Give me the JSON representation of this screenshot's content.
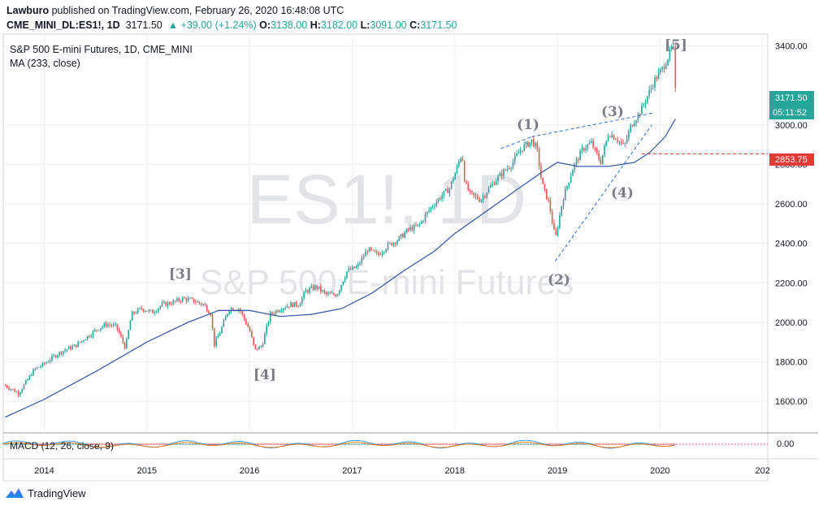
{
  "header": {
    "author": "Lawburo",
    "published": "published on TradingView.com, February 26, 2020 16:48:08 UTC",
    "symbol": "CME_MINI_DL:ES1!, 1D",
    "last": "3171.50",
    "change": "▲ +39.00 (+1.24%)",
    "o_label": "O:",
    "o": "3138.00",
    "h_label": "H:",
    "h": "3182.00",
    "l_label": "L:",
    "l": "3091.00",
    "c_label": "C:",
    "c": "3171.50"
  },
  "legend": {
    "title": "S&P 500 E-mini Futures, 1D, CME_MINI",
    "ma": "MA (233, close)"
  },
  "watermark": {
    "ticker": "ES1!, 1D",
    "name": "S&P 500 E-mini Futures"
  },
  "macd_label": "MACD (12, 26, close, 9)",
  "macd_value": "0.00",
  "price_tag": {
    "price": "3171.50",
    "countdown": "05:11:52"
  },
  "red_tag": "2853.75",
  "wave_labels": [
    "[3]",
    "[4]",
    "(1)",
    "(2)",
    "(3)",
    "(4)",
    "[5]"
  ],
  "footer": {
    "brand": "TradingView"
  },
  "colors": {
    "candle_up": "#26a69a",
    "candle_down": "#ef5350",
    "ma_line": "#3c5ea8",
    "wave_line": "#2a6fd6",
    "red_level": "#e53935",
    "price_tag": "#26a69a",
    "red_tag_bg": "#e53935"
  },
  "chart_data": {
    "type": "line",
    "title": "S&P 500 E-mini Futures, 1D, CME_MINI",
    "x_ticks": [
      "2014",
      "2015",
      "2016",
      "2017",
      "2018",
      "2019",
      "2020",
      "202"
    ],
    "y_ticks": [
      1600,
      1800,
      2000,
      2200,
      2400,
      2600,
      2800,
      3000,
      3400
    ],
    "y_tick_labels": [
      "1600.00",
      "1800.00",
      "2000.00",
      "2200.00",
      "2400.00",
      "2600.00",
      "2800.00",
      "3000.00",
      "3400.00"
    ],
    "ylim": [
      1440,
      3460
    ],
    "xlim": [
      2013.6,
      2021.05
    ],
    "series": [
      {
        "name": "",
        "x": [
          2013.62,
          2013.75,
          2013.9,
          2014.0,
          2014.1,
          2014.2,
          2014.3,
          2014.4,
          2014.5,
          2014.6,
          2014.7,
          2014.79,
          2014.85,
          2014.95,
          2015.05,
          2015.15,
          2015.25,
          2015.35,
          2015.45,
          2015.55,
          2015.63,
          2015.65,
          2015.72,
          2015.8,
          2015.9,
          2016.0,
          2016.05,
          2016.12,
          2016.2,
          2016.3,
          2016.4,
          2016.48,
          2016.55,
          2016.65,
          2016.75,
          2016.85,
          2016.95,
          2017.05,
          2017.15,
          2017.25,
          2017.35,
          2017.45,
          2017.55,
          2017.65,
          2017.75,
          2017.85,
          2017.95,
          2018.02,
          2018.07,
          2018.1,
          2018.15,
          2018.25,
          2018.35,
          2018.45,
          2018.55,
          2018.65,
          2018.75,
          2018.8,
          2018.85,
          2018.92,
          2018.98,
          2019.05,
          2019.15,
          2019.25,
          2019.33,
          2019.42,
          2019.5,
          2019.58,
          2019.65,
          2019.72,
          2019.8,
          2019.88,
          2019.95,
          2020.03,
          2020.1,
          2020.13,
          2020.15
        ],
        "y": [
          1680,
          1640,
          1760,
          1790,
          1830,
          1860,
          1880,
          1920,
          1960,
          1990,
          1980,
          1870,
          2040,
          2070,
          2050,
          2090,
          2100,
          2120,
          2110,
          2090,
          2040,
          1880,
          1960,
          2070,
          2070,
          1960,
          1860,
          1880,
          2040,
          2070,
          2090,
          2090,
          2160,
          2180,
          2140,
          2140,
          2260,
          2280,
          2370,
          2340,
          2390,
          2420,
          2470,
          2490,
          2570,
          2630,
          2680,
          2780,
          2860,
          2700,
          2650,
          2620,
          2690,
          2750,
          2800,
          2880,
          2920,
          2880,
          2700,
          2600,
          2420,
          2620,
          2780,
          2880,
          2910,
          2810,
          2960,
          2930,
          2890,
          3000,
          3060,
          3150,
          3230,
          3290,
          3370,
          3400,
          3171.5
        ]
      },
      {
        "name": "",
        "x": [
          2013.62,
          2014.0,
          2014.5,
          2015.0,
          2015.4,
          2015.7,
          2016.0,
          2016.3,
          2016.6,
          2016.9,
          2017.2,
          2017.5,
          2017.8,
          2018.0,
          2018.3,
          2018.6,
          2018.85,
          2019.0,
          2019.2,
          2019.5,
          2019.75,
          2019.9,
          2020.05,
          2020.15
        ],
        "y": [
          1520,
          1610,
          1750,
          1900,
          2000,
          2060,
          2060,
          2030,
          2040,
          2070,
          2150,
          2260,
          2360,
          2450,
          2560,
          2670,
          2760,
          2810,
          2790,
          2790,
          2810,
          2860,
          2940,
          3030
        ]
      }
    ],
    "annotations": [
      "[3]",
      "[4]",
      "(1)",
      "(2)",
      "(3)",
      "(4)",
      "[5]"
    ],
    "macd": {
      "label": "MACD (12, 26, close, 9)",
      "value": "0.00"
    }
  }
}
